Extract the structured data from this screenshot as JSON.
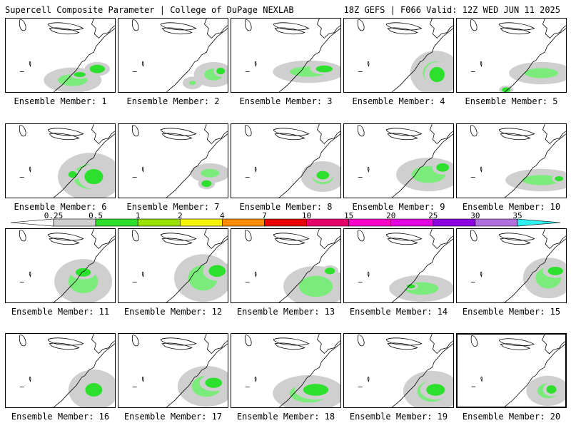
{
  "header": {
    "left": "Supercell Composite Parameter | College of DuPage NEXLAB",
    "right": "18Z GEFS | F066 Valid: 12Z WED JUN 11 2025"
  },
  "colorbar": {
    "tick_labels": [
      "0.25",
      "0.5",
      "1",
      "2",
      "4",
      "7",
      "10",
      "15",
      "20",
      "25",
      "30",
      "35"
    ],
    "colors": [
      "#cfcfcf",
      "#2ee02e",
      "#9ae000",
      "#f5f500",
      "#ff8c00",
      "#e80000",
      "#e8006a",
      "#ff00c8",
      "#e000e0",
      "#8c00e0",
      "#b070e0",
      "#30f0f0"
    ]
  },
  "panels": [
    {
      "label": "Ensemble Member: 1"
    },
    {
      "label": "Ensemble Member: 2"
    },
    {
      "label": "Ensemble Member: 3"
    },
    {
      "label": "Ensemble Member: 4"
    },
    {
      "label": "Ensemble Member: 5"
    },
    {
      "label": "Ensemble Member: 6"
    },
    {
      "label": "Ensemble Member: 7"
    },
    {
      "label": "Ensemble Member: 8"
    },
    {
      "label": "Ensemble Member: 9"
    },
    {
      "label": "Ensemble Member: 10"
    },
    {
      "label": "Ensemble Member: 11"
    },
    {
      "label": "Ensemble Member: 12"
    },
    {
      "label": "Ensemble Member: 13"
    },
    {
      "label": "Ensemble Member: 14"
    },
    {
      "label": "Ensemble Member: 15"
    },
    {
      "label": "Ensemble Member: 16"
    },
    {
      "label": "Ensemble Member: 17"
    },
    {
      "label": "Ensemble Member: 18"
    },
    {
      "label": "Ensemble Member: 19"
    },
    {
      "label": "Ensemble Member: 20",
      "highlighted": true
    }
  ]
}
